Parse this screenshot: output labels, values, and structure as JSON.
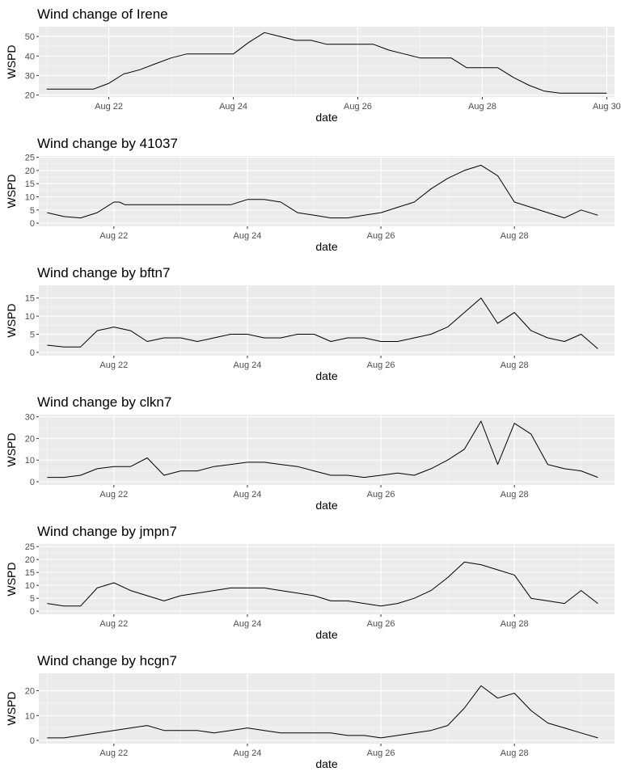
{
  "colors": {
    "panel_background": "#ebebeb",
    "grid": "#ffffff",
    "line": "#000000",
    "tick_text": "#4d4d4d"
  },
  "chart_data": [
    {
      "type": "line",
      "title": "Wind change of Irene",
      "xlabel": "date",
      "ylabel": "WSPD",
      "xlim": [
        "2011-08-20T21:00",
        "2011-08-30T03:00"
      ],
      "ylim": [
        19,
        55
      ],
      "x_ticks": [
        "Aug 22",
        "Aug 24",
        "Aug 26",
        "Aug 28",
        "Aug 30"
      ],
      "y_ticks": [
        20,
        30,
        40,
        50
      ],
      "grid": true,
      "series": [
        {
          "x": [
            "2011-08-21T00:00",
            "2011-08-21T12:00",
            "2011-08-21T18:00",
            "2011-08-22T00:00",
            "2011-08-22T06:00",
            "2011-08-22T06:30",
            "2011-08-22T12:00",
            "2011-08-22T18:00",
            "2011-08-23T00:00",
            "2011-08-23T06:00",
            "2011-08-23T12:00",
            "2011-08-23T18:00",
            "2011-08-24T00:00",
            "2011-08-24T06:00",
            "2011-08-24T12:00",
            "2011-08-24T18:00",
            "2011-08-25T00:00",
            "2011-08-25T06:00",
            "2011-08-25T12:00",
            "2011-08-25T18:00",
            "2011-08-26T00:00",
            "2011-08-26T06:00",
            "2011-08-26T12:00",
            "2011-08-26T18:00",
            "2011-08-27T00:00",
            "2011-08-27T06:00",
            "2011-08-27T12:00",
            "2011-08-27T18:00",
            "2011-08-28T00:00",
            "2011-08-28T06:00",
            "2011-08-28T12:00",
            "2011-08-28T18:00",
            "2011-08-29T00:00",
            "2011-08-29T06:00",
            "2011-08-29T12:00",
            "2011-08-29T18:00",
            "2011-08-30T00:00"
          ],
          "y": [
            23,
            23,
            23,
            26,
            31,
            31,
            33,
            36,
            39,
            41,
            41,
            41,
            41,
            47,
            52,
            50,
            48,
            48,
            46,
            46,
            46,
            46,
            43,
            41,
            39,
            39,
            39,
            34,
            34,
            34,
            29,
            25,
            22,
            21,
            21,
            21,
            21
          ]
        }
      ]
    },
    {
      "type": "line",
      "title": "Wind change by 41037",
      "xlabel": "date",
      "ylabel": "WSPD",
      "xlim": [
        "2011-08-20T21:00",
        "2011-08-29T12:00"
      ],
      "ylim": [
        -1.2,
        25.5
      ],
      "x_ticks": [
        "Aug 22",
        "Aug 24",
        "Aug 26",
        "Aug 28"
      ],
      "y_ticks": [
        0,
        5,
        10,
        15,
        20,
        25
      ],
      "grid": true,
      "series": [
        {
          "x": [
            "2011-08-21T00:00",
            "2011-08-21T06:00",
            "2011-08-21T12:00",
            "2011-08-21T18:00",
            "2011-08-22T00:00",
            "2011-08-22T02:00",
            "2011-08-22T04:00",
            "2011-08-22T06:00",
            "2011-08-22T12:00",
            "2011-08-22T18:00",
            "2011-08-23T00:00",
            "2011-08-23T06:00",
            "2011-08-23T12:00",
            "2011-08-23T18:00",
            "2011-08-24T00:00",
            "2011-08-24T06:00",
            "2011-08-24T12:00",
            "2011-08-24T18:00",
            "2011-08-25T00:00",
            "2011-08-25T06:00",
            "2011-08-25T12:00",
            "2011-08-25T18:00",
            "2011-08-26T00:00",
            "2011-08-26T06:00",
            "2011-08-26T12:00",
            "2011-08-26T18:00",
            "2011-08-27T00:00",
            "2011-08-27T06:00",
            "2011-08-27T12:00",
            "2011-08-27T18:00",
            "2011-08-28T00:00",
            "2011-08-28T06:00",
            "2011-08-28T12:00",
            "2011-08-28T18:00",
            "2011-08-29T00:00",
            "2011-08-29T06:00"
          ],
          "y": [
            4,
            2.5,
            2,
            4,
            8,
            8,
            7,
            7,
            7,
            7,
            7,
            7,
            7,
            7,
            9,
            9,
            8,
            4,
            3,
            2,
            2,
            3,
            4,
            6,
            8,
            13,
            17,
            20,
            22,
            18,
            8,
            6,
            4,
            2,
            5,
            3
          ]
        }
      ]
    },
    {
      "type": "line",
      "title": "Wind change by bftn7",
      "xlabel": "date",
      "ylabel": "WSPD",
      "xlim": [
        "2011-08-20T21:00",
        "2011-08-29T12:00"
      ],
      "ylim": [
        -0.9,
        18.5
      ],
      "x_ticks": [
        "Aug 22",
        "Aug 24",
        "Aug 26",
        "Aug 28"
      ],
      "y_ticks": [
        0,
        5,
        10,
        15
      ],
      "grid": true,
      "series": [
        {
          "x": [
            "2011-08-21T00:00",
            "2011-08-21T06:00",
            "2011-08-21T12:00",
            "2011-08-21T18:00",
            "2011-08-22T00:00",
            "2011-08-22T06:00",
            "2011-08-22T12:00",
            "2011-08-22T18:00",
            "2011-08-23T00:00",
            "2011-08-23T06:00",
            "2011-08-23T12:00",
            "2011-08-23T18:00",
            "2011-08-24T00:00",
            "2011-08-24T06:00",
            "2011-08-24T12:00",
            "2011-08-24T18:00",
            "2011-08-25T00:00",
            "2011-08-25T06:00",
            "2011-08-25T12:00",
            "2011-08-25T18:00",
            "2011-08-26T00:00",
            "2011-08-26T06:00",
            "2011-08-26T12:00",
            "2011-08-26T18:00",
            "2011-08-27T00:00",
            "2011-08-27T06:00",
            "2011-08-27T12:00",
            "2011-08-27T18:00",
            "2011-08-28T00:00",
            "2011-08-28T06:00",
            "2011-08-28T12:00",
            "2011-08-28T18:00",
            "2011-08-29T00:00",
            "2011-08-29T06:00"
          ],
          "y": [
            2,
            1.5,
            1.5,
            6,
            7,
            6,
            3,
            4,
            4,
            3,
            4,
            5,
            5,
            4,
            4,
            5,
            5,
            3,
            4,
            4,
            3,
            3,
            4,
            5,
            7,
            11,
            15,
            8,
            11,
            6,
            4,
            3,
            5,
            1
          ]
        }
      ]
    },
    {
      "type": "line",
      "title": "Wind change by clkn7",
      "xlabel": "date",
      "ylabel": "WSPD",
      "xlim": [
        "2011-08-20T21:00",
        "2011-08-29T12:00"
      ],
      "ylim": [
        -1.5,
        31
      ],
      "x_ticks": [
        "Aug 22",
        "Aug 24",
        "Aug 26",
        "Aug 28"
      ],
      "y_ticks": [
        0,
        10,
        20,
        30
      ],
      "grid": true,
      "series": [
        {
          "x": [
            "2011-08-21T00:00",
            "2011-08-21T06:00",
            "2011-08-21T12:00",
            "2011-08-21T18:00",
            "2011-08-22T00:00",
            "2011-08-22T06:00",
            "2011-08-22T12:00",
            "2011-08-22T18:00",
            "2011-08-23T00:00",
            "2011-08-23T06:00",
            "2011-08-23T12:00",
            "2011-08-23T18:00",
            "2011-08-24T00:00",
            "2011-08-24T06:00",
            "2011-08-24T12:00",
            "2011-08-24T18:00",
            "2011-08-25T00:00",
            "2011-08-25T06:00",
            "2011-08-25T12:00",
            "2011-08-25T18:00",
            "2011-08-26T00:00",
            "2011-08-26T06:00",
            "2011-08-26T12:00",
            "2011-08-26T18:00",
            "2011-08-27T00:00",
            "2011-08-27T06:00",
            "2011-08-27T12:00",
            "2011-08-27T18:00",
            "2011-08-28T00:00",
            "2011-08-28T06:00",
            "2011-08-28T12:00",
            "2011-08-28T18:00",
            "2011-08-29T00:00",
            "2011-08-29T06:00"
          ],
          "y": [
            2,
            2,
            3,
            6,
            7,
            7,
            11,
            3,
            5,
            5,
            7,
            8,
            9,
            9,
            8,
            7,
            5,
            3,
            3,
            2,
            3,
            4,
            3,
            6,
            10,
            15,
            28,
            8,
            27,
            22,
            8,
            6,
            5,
            2
          ]
        }
      ]
    },
    {
      "type": "line",
      "title": "Wind change by jmpn7",
      "xlabel": "date",
      "ylabel": "WSPD",
      "xlim": [
        "2011-08-20T21:00",
        "2011-08-29T12:00"
      ],
      "ylim": [
        -1.2,
        26
      ],
      "x_ticks": [
        "Aug 22",
        "Aug 24",
        "Aug 26",
        "Aug 28"
      ],
      "y_ticks": [
        0,
        5,
        10,
        15,
        20,
        25
      ],
      "grid": true,
      "series": [
        {
          "x": [
            "2011-08-21T00:00",
            "2011-08-21T06:00",
            "2011-08-21T12:00",
            "2011-08-21T18:00",
            "2011-08-22T00:00",
            "2011-08-22T06:00",
            "2011-08-22T12:00",
            "2011-08-22T18:00",
            "2011-08-23T00:00",
            "2011-08-23T06:00",
            "2011-08-23T12:00",
            "2011-08-23T18:00",
            "2011-08-24T00:00",
            "2011-08-24T06:00",
            "2011-08-24T12:00",
            "2011-08-24T18:00",
            "2011-08-25T00:00",
            "2011-08-25T06:00",
            "2011-08-25T12:00",
            "2011-08-25T18:00",
            "2011-08-26T00:00",
            "2011-08-26T06:00",
            "2011-08-26T12:00",
            "2011-08-26T18:00",
            "2011-08-27T00:00",
            "2011-08-27T06:00",
            "2011-08-27T12:00",
            "2011-08-27T18:00",
            "2011-08-28T00:00",
            "2011-08-28T06:00",
            "2011-08-28T12:00",
            "2011-08-28T18:00",
            "2011-08-29T00:00",
            "2011-08-29T06:00"
          ],
          "y": [
            3,
            2,
            2,
            9,
            11,
            8,
            6,
            4,
            6,
            7,
            8,
            9,
            9,
            9,
            8,
            7,
            6,
            4,
            4,
            3,
            2,
            3,
            5,
            8,
            13,
            19,
            18,
            16,
            14,
            5,
            4,
            3,
            8,
            3
          ]
        }
      ]
    },
    {
      "type": "line",
      "title": "Wind change by hcgn7",
      "xlabel": "date",
      "ylabel": "WSPD",
      "xlim": [
        "2011-08-20T21:00",
        "2011-08-29T12:00"
      ],
      "ylim": [
        -1.3,
        27
      ],
      "x_ticks": [
        "Aug 22",
        "Aug 24",
        "Aug 26",
        "Aug 28"
      ],
      "y_ticks": [
        0,
        10,
        20
      ],
      "grid": true,
      "series": [
        {
          "x": [
            "2011-08-21T00:00",
            "2011-08-21T06:00",
            "2011-08-21T12:00",
            "2011-08-21T18:00",
            "2011-08-22T00:00",
            "2011-08-22T06:00",
            "2011-08-22T12:00",
            "2011-08-22T18:00",
            "2011-08-23T00:00",
            "2011-08-23T06:00",
            "2011-08-23T12:00",
            "2011-08-23T18:00",
            "2011-08-24T00:00",
            "2011-08-24T06:00",
            "2011-08-24T12:00",
            "2011-08-24T18:00",
            "2011-08-25T00:00",
            "2011-08-25T06:00",
            "2011-08-25T12:00",
            "2011-08-25T18:00",
            "2011-08-26T00:00",
            "2011-08-26T06:00",
            "2011-08-26T12:00",
            "2011-08-26T18:00",
            "2011-08-27T00:00",
            "2011-08-27T06:00",
            "2011-08-27T12:00",
            "2011-08-27T18:00",
            "2011-08-28T00:00",
            "2011-08-28T06:00",
            "2011-08-28T12:00",
            "2011-08-28T18:00",
            "2011-08-29T00:00",
            "2011-08-29T06:00"
          ],
          "y": [
            1,
            1,
            2,
            3,
            4,
            5,
            6,
            4,
            4,
            4,
            3,
            4,
            5,
            4,
            3,
            3,
            3,
            3,
            2,
            2,
            1,
            2,
            3,
            4,
            6,
            13,
            22,
            17,
            19,
            12,
            7,
            5,
            3,
            1
          ]
        }
      ]
    }
  ]
}
